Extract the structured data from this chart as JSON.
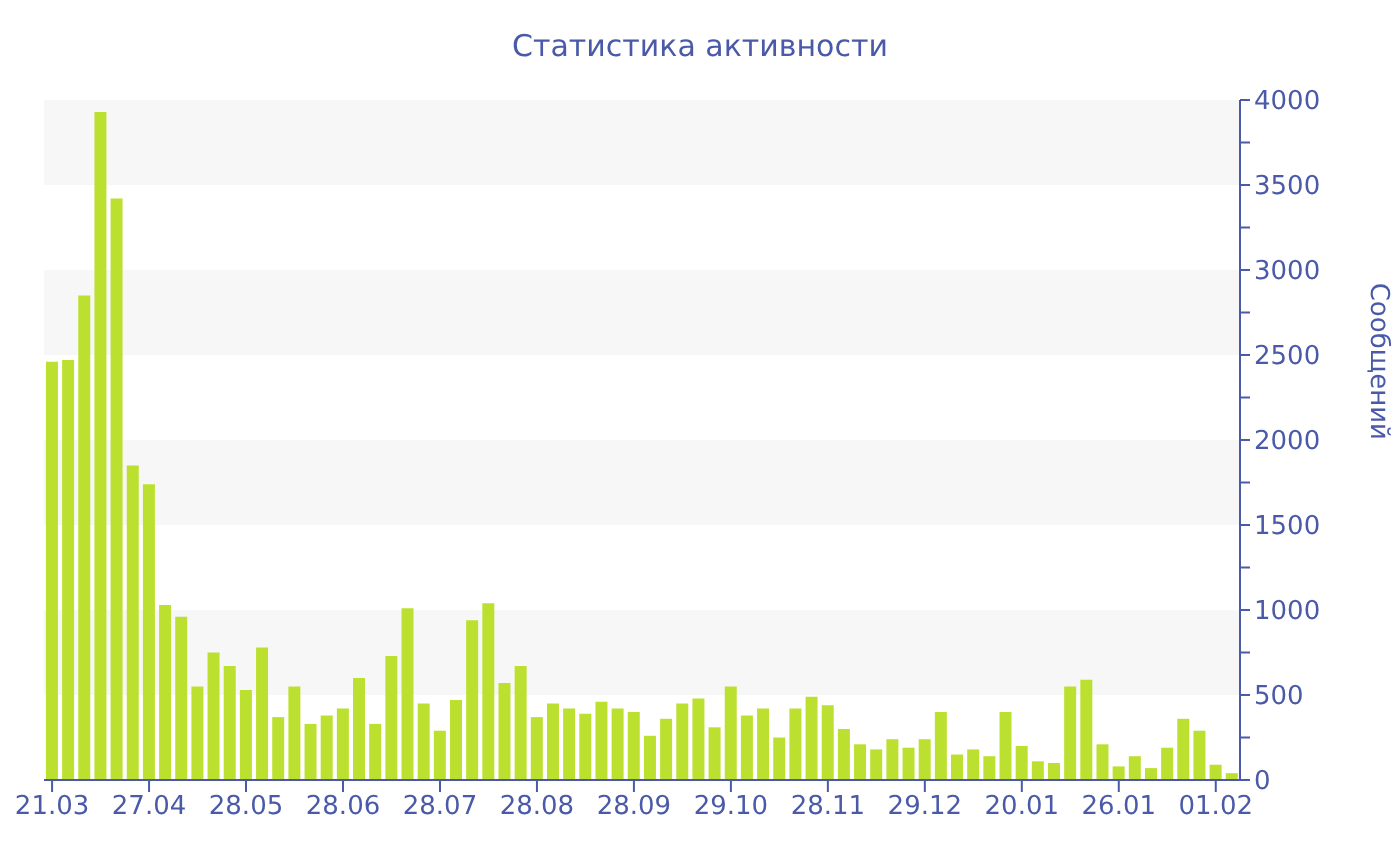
{
  "chart_data": {
    "type": "bar",
    "title": "Статистика активности",
    "ylabel": "Сообщений",
    "categories": [
      "21.03",
      null,
      null,
      null,
      null,
      null,
      "27.04",
      null,
      null,
      null,
      null,
      null,
      "28.05",
      null,
      null,
      null,
      null,
      null,
      "28.06",
      null,
      null,
      null,
      null,
      null,
      "28.07",
      null,
      null,
      null,
      null,
      null,
      "28.08",
      null,
      null,
      null,
      null,
      null,
      "28.09",
      null,
      null,
      null,
      null,
      null,
      "29.10",
      null,
      null,
      null,
      null,
      null,
      "28.11",
      null,
      null,
      null,
      null,
      null,
      "29.12",
      null,
      null,
      null,
      null,
      null,
      "20.01",
      null,
      null,
      null,
      null,
      null,
      "26.01",
      null,
      null,
      null,
      null,
      null,
      "01.02",
      null
    ],
    "values": [
      2460,
      2470,
      2850,
      3930,
      3420,
      1850,
      1740,
      1030,
      960,
      550,
      750,
      670,
      530,
      780,
      370,
      550,
      330,
      380,
      420,
      600,
      330,
      730,
      1010,
      450,
      290,
      470,
      940,
      1040,
      570,
      670,
      370,
      450,
      420,
      390,
      460,
      420,
      400,
      260,
      360,
      450,
      480,
      310,
      550,
      380,
      420,
      250,
      420,
      490,
      440,
      300,
      210,
      180,
      240,
      190,
      240,
      400,
      150,
      180,
      140,
      400,
      200,
      110,
      100,
      550,
      590,
      210,
      80,
      140,
      70,
      190,
      360,
      290,
      90,
      40
    ],
    "color": "#bce030",
    "ylim": [
      0,
      4000
    ],
    "yticks": [
      0,
      {
        "value": 250,
        "label": null
      },
      500,
      {
        "value": 750,
        "label": null
      },
      1000,
      {
        "value": 1250,
        "label": null
      },
      1500,
      {
        "value": 1750,
        "label": null
      },
      2000,
      {
        "value": 2250,
        "label": null
      },
      2500,
      {
        "value": 2750,
        "label": null
      },
      3000,
      {
        "value": 3250,
        "label": null
      },
      3500,
      {
        "value": 3750,
        "label": null
      },
      4000
    ],
    "bands": [
      {
        "axis": "y",
        "from": 500,
        "to": 1000,
        "color": "#f7f7f7"
      },
      {
        "axis": "y",
        "from": 1500,
        "to": 2000,
        "color": "#f7f7f7"
      },
      {
        "axis": "y",
        "from": 2500,
        "to": 3000,
        "color": "#f7f7f7"
      },
      {
        "axis": "y",
        "from": 3500,
        "to": 4000,
        "color": "#f7f7f7"
      }
    ]
  }
}
